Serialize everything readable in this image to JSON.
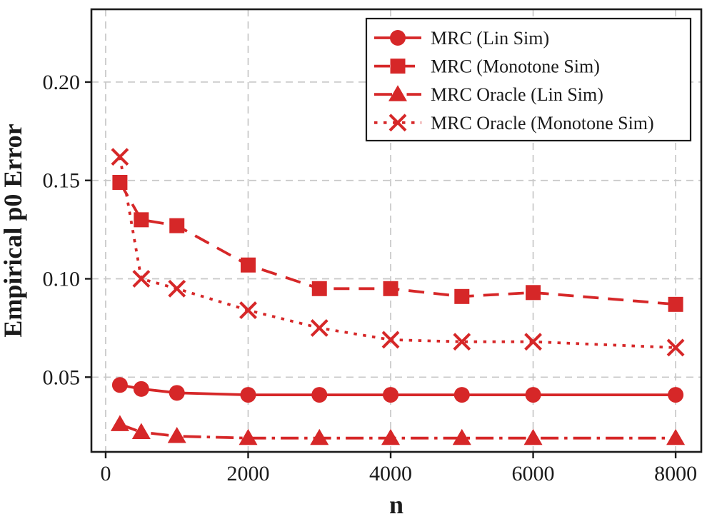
{
  "chart_data": {
    "type": "line",
    "title": "",
    "xlabel": "n",
    "ylabel": "Empirical p0 Error",
    "x": [
      200,
      500,
      1000,
      2000,
      3000,
      4000,
      5000,
      6000,
      8000
    ],
    "xticks": [
      0,
      2000,
      4000,
      6000,
      8000
    ],
    "xtick_labels": [
      "0",
      "2000",
      "4000",
      "6000",
      "8000"
    ],
    "yticks": [
      0.05,
      0.1,
      0.15,
      0.2
    ],
    "ytick_labels": [
      "0.05",
      "0.10",
      "0.15",
      "0.20"
    ],
    "xlim": [
      -200,
      8360
    ],
    "ylim": [
      0.012,
      0.237
    ],
    "grid": true,
    "legend_position": "upper right",
    "color": "#d62728",
    "grid_color": "#c8c8c8",
    "axis_color": "#1b1b1b",
    "background": "#ffffff",
    "series": [
      {
        "name": "MRC (Lin Sim)",
        "marker": "circle",
        "linestyle": "solid",
        "values": [
          0.046,
          0.044,
          0.042,
          0.041,
          0.041,
          0.041,
          0.041,
          0.041,
          0.041
        ]
      },
      {
        "name": "MRC (Monotone Sim)",
        "marker": "square",
        "linestyle": "dashed",
        "values": [
          0.149,
          0.13,
          0.127,
          0.107,
          0.095,
          0.095,
          0.091,
          0.093,
          0.087
        ]
      },
      {
        "name": "MRC Oracle (Lin Sim)",
        "marker": "triangle",
        "linestyle": "dashdot",
        "values": [
          0.026,
          0.022,
          0.02,
          0.019,
          0.019,
          0.019,
          0.019,
          0.019,
          0.019
        ]
      },
      {
        "name": "MRC Oracle (Monotone Sim)",
        "marker": "x",
        "linestyle": "dotted",
        "values": [
          0.162,
          0.1,
          0.095,
          0.084,
          0.075,
          0.069,
          0.068,
          0.068,
          0.065
        ]
      }
    ]
  }
}
